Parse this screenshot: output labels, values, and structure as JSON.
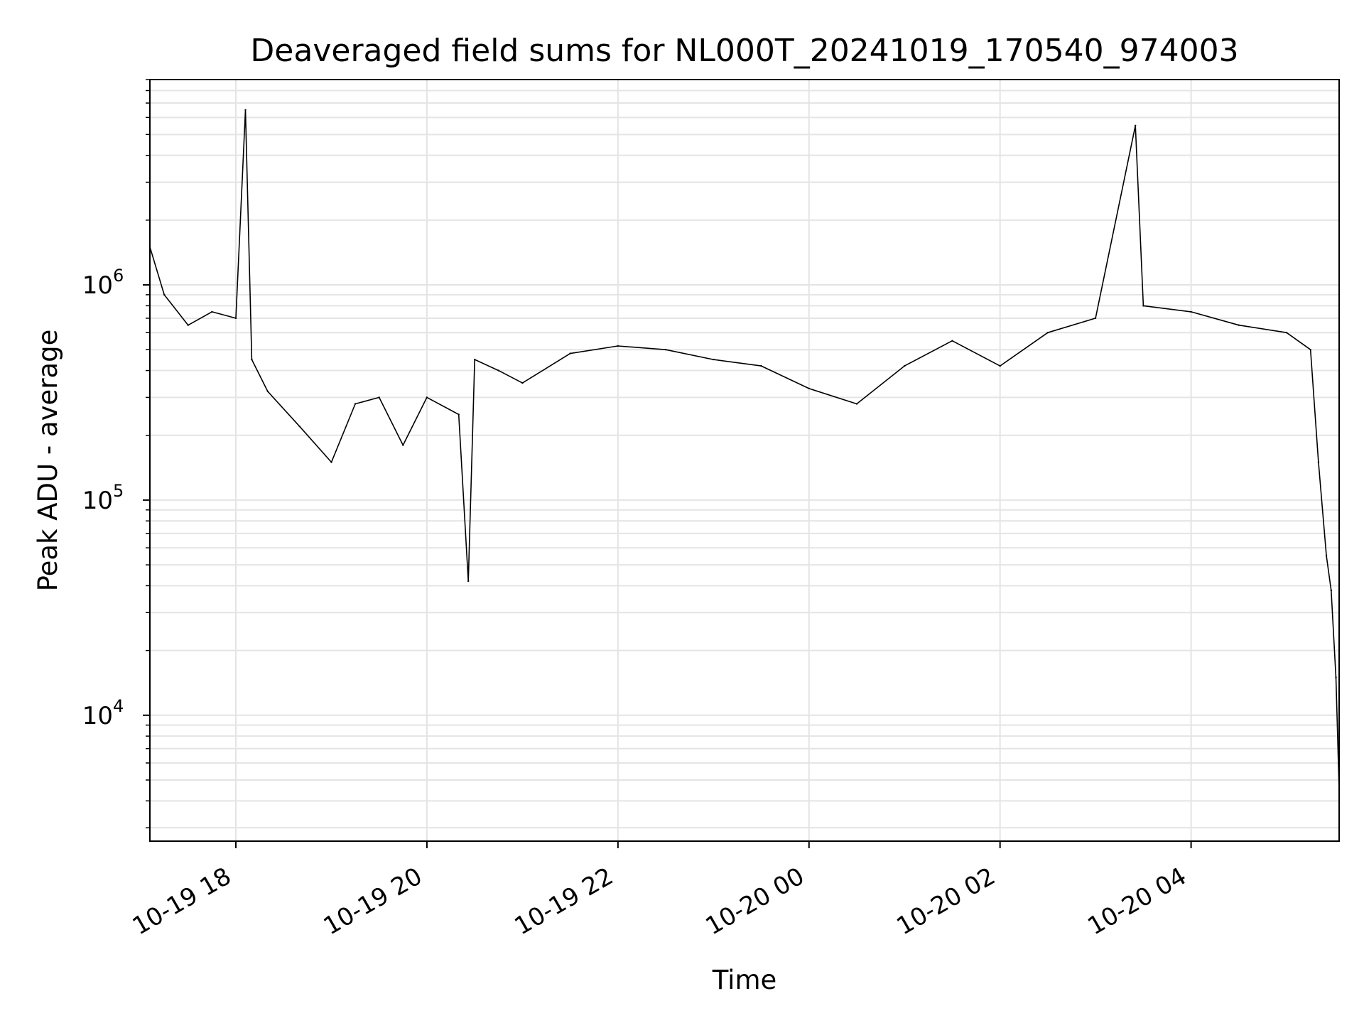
{
  "chart_data": {
    "type": "line",
    "title": "Deaveraged field sums for NL000T_20241019_170540_974003",
    "xlabel": "Time",
    "ylabel": "Peak ADU - average",
    "yscale": "log",
    "grid": true,
    "line_color": "#000000",
    "xlim": [
      "2024-10-19 17:06",
      "2024-10-20 05:33"
    ],
    "ylim": [
      2600,
      9000000
    ],
    "xticks": [
      {
        "x": "2024-10-19 18:00",
        "label": "10-19 18"
      },
      {
        "x": "2024-10-19 20:00",
        "label": "10-19 20"
      },
      {
        "x": "2024-10-19 22:00",
        "label": "10-19 22"
      },
      {
        "x": "2024-10-20 00:00",
        "label": "10-20 00"
      },
      {
        "x": "2024-10-20 02:00",
        "label": "10-20 02"
      },
      {
        "x": "2024-10-20 04:00",
        "label": "10-20 04"
      }
    ],
    "yticks": [
      {
        "value": 10000,
        "base": "10",
        "exp": "4"
      },
      {
        "value": 100000,
        "base": "10",
        "exp": "5"
      },
      {
        "value": 1000000,
        "base": "10",
        "exp": "6"
      }
    ],
    "series": [
      {
        "values": [
          [
            "2024-10-19 17:06",
            1500000
          ],
          [
            "2024-10-19 17:15",
            900000
          ],
          [
            "2024-10-19 17:30",
            650000
          ],
          [
            "2024-10-19 17:45",
            750000
          ],
          [
            "2024-10-19 18:00",
            700000
          ],
          [
            "2024-10-19 18:06",
            6500000
          ],
          [
            "2024-10-19 18:10",
            450000
          ],
          [
            "2024-10-19 18:20",
            320000
          ],
          [
            "2024-10-19 18:40",
            220000
          ],
          [
            "2024-10-19 19:00",
            150000
          ],
          [
            "2024-10-19 19:15",
            280000
          ],
          [
            "2024-10-19 19:30",
            300000
          ],
          [
            "2024-10-19 19:45",
            180000
          ],
          [
            "2024-10-19 20:00",
            300000
          ],
          [
            "2024-10-19 20:20",
            250000
          ],
          [
            "2024-10-19 20:26",
            42000
          ],
          [
            "2024-10-19 20:30",
            450000
          ],
          [
            "2024-10-19 20:45",
            400000
          ],
          [
            "2024-10-19 21:00",
            350000
          ],
          [
            "2024-10-19 21:30",
            480000
          ],
          [
            "2024-10-19 22:00",
            520000
          ],
          [
            "2024-10-19 22:30",
            500000
          ],
          [
            "2024-10-19 23:00",
            450000
          ],
          [
            "2024-10-19 23:30",
            420000
          ],
          [
            "2024-10-20 00:00",
            330000
          ],
          [
            "2024-10-20 00:30",
            280000
          ],
          [
            "2024-10-20 01:00",
            420000
          ],
          [
            "2024-10-20 01:30",
            550000
          ],
          [
            "2024-10-20 02:00",
            420000
          ],
          [
            "2024-10-20 02:30",
            600000
          ],
          [
            "2024-10-20 03:00",
            700000
          ],
          [
            "2024-10-20 03:25",
            5500000
          ],
          [
            "2024-10-20 03:30",
            800000
          ],
          [
            "2024-10-20 04:00",
            750000
          ],
          [
            "2024-10-20 04:30",
            650000
          ],
          [
            "2024-10-20 05:00",
            600000
          ],
          [
            "2024-10-20 05:15",
            500000
          ],
          [
            "2024-10-20 05:20",
            150000
          ],
          [
            "2024-10-20 05:25",
            55000
          ],
          [
            "2024-10-20 05:28",
            38000
          ],
          [
            "2024-10-20 05:31",
            15000
          ],
          [
            "2024-10-20 05:33",
            4500
          ]
        ]
      }
    ]
  }
}
